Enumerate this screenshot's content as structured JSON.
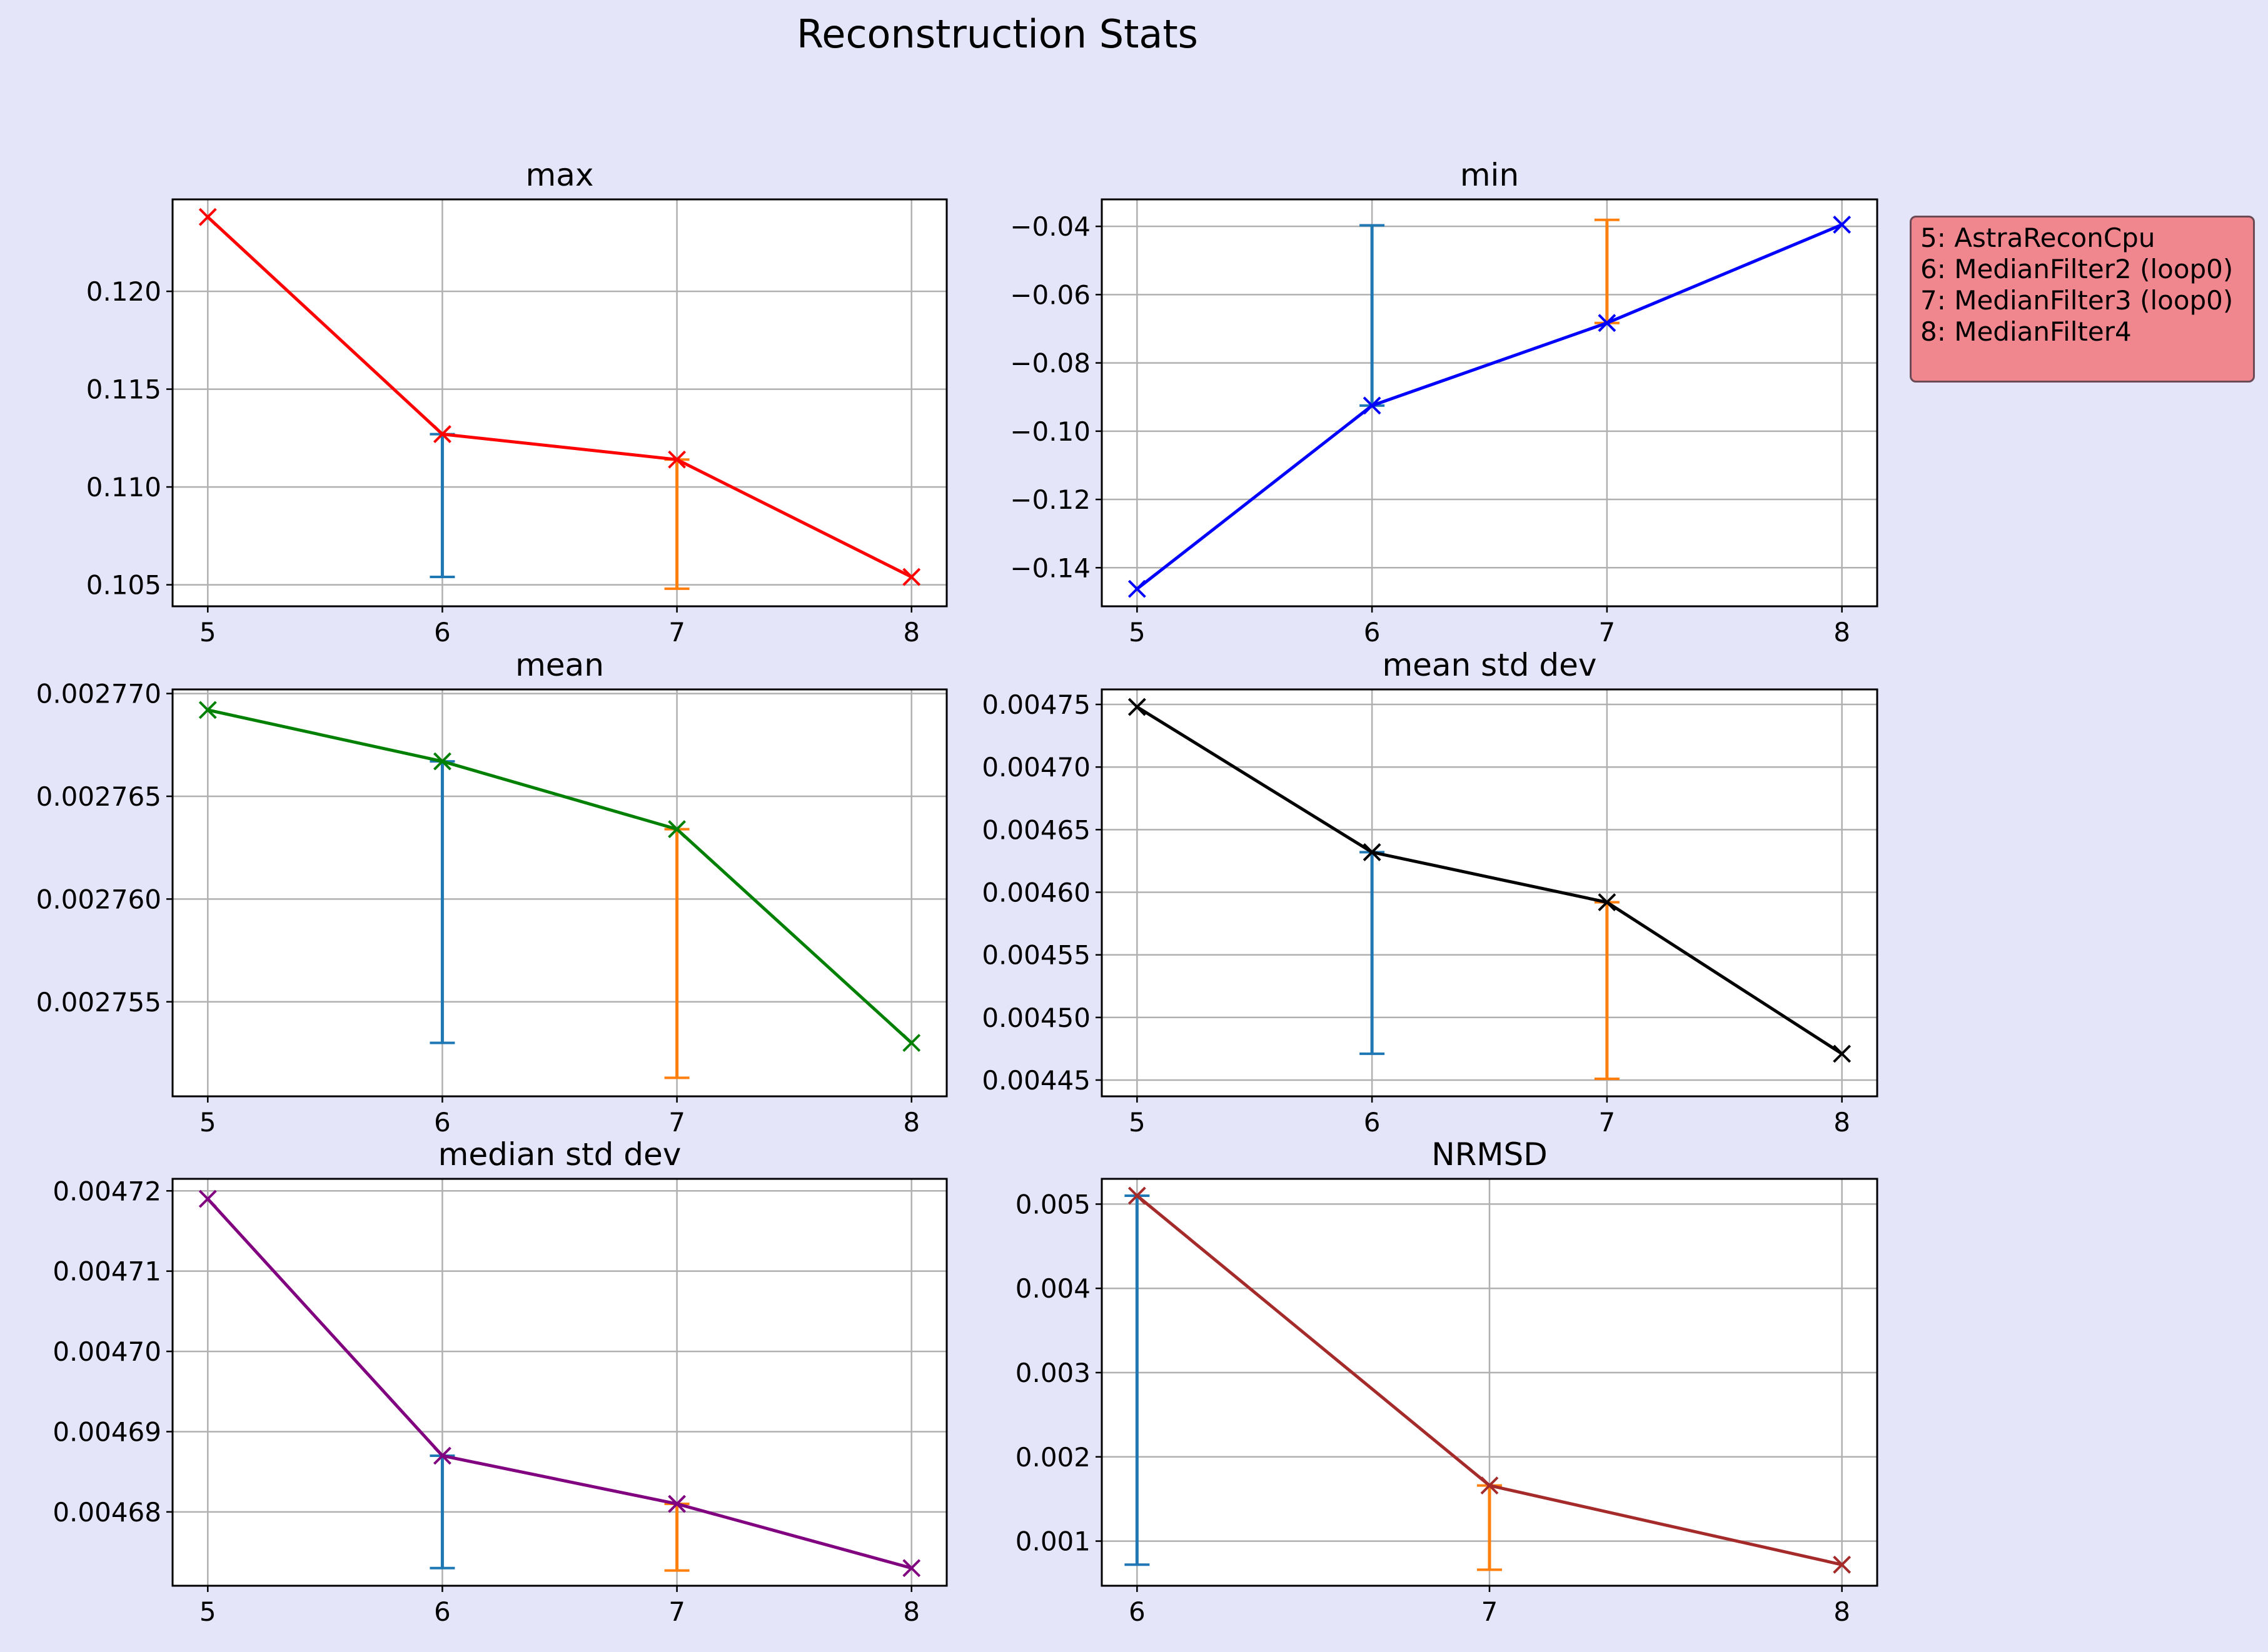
{
  "figure": {
    "title": "Reconstruction Stats",
    "background": "#e4e5f8",
    "legend": {
      "placement": "right of top-right panel",
      "background": "#f0878f",
      "items": [
        "5: AstraReconCpu",
        "6: MedianFilter2 (loop0)",
        "7: MedianFilter3 (loop0)",
        "8: MedianFilter4"
      ]
    }
  },
  "chart_data": [
    {
      "type": "line",
      "title": "max",
      "color": "#ff0000",
      "x": [
        5,
        6,
        7,
        8
      ],
      "y": [
        0.1238,
        0.1127,
        0.1114,
        0.1054
      ],
      "xticks": [
        "5",
        "6",
        "7",
        "8"
      ],
      "yticks": [
        "0.105",
        "0.110",
        "0.115",
        "0.120"
      ],
      "ytick_values": [
        0.105,
        0.11,
        0.115,
        0.12
      ],
      "xlim": [
        4.85,
        8.15
      ],
      "ylim": [
        0.1039,
        0.1247
      ],
      "grid": true,
      "error_bars": [
        {
          "x": 6,
          "low": 0.1054,
          "high": 0.1127,
          "color": "#1f77b4"
        },
        {
          "x": 7,
          "low": 0.1048,
          "high": 0.1114,
          "color": "#ff7f0e"
        }
      ]
    },
    {
      "type": "line",
      "title": "min",
      "color": "#0000ff",
      "x": [
        5,
        6,
        7,
        8
      ],
      "y": [
        -0.1462,
        -0.0925,
        -0.0683,
        -0.0395
      ],
      "xticks": [
        "5",
        "6",
        "7",
        "8"
      ],
      "yticks": [
        "−0.14",
        "−0.12",
        "−0.10",
        "−0.08",
        "−0.06",
        "−0.04"
      ],
      "ytick_values": [
        -0.14,
        -0.12,
        -0.1,
        -0.08,
        -0.06,
        -0.04
      ],
      "xlim": [
        4.85,
        8.15
      ],
      "ylim": [
        -0.1513,
        -0.0321
      ],
      "grid": true,
      "error_bars": [
        {
          "x": 6,
          "low": -0.0925,
          "high": -0.0397,
          "color": "#1f77b4"
        },
        {
          "x": 7,
          "low": -0.0683,
          "high": -0.0381,
          "color": "#ff7f0e"
        }
      ]
    },
    {
      "type": "line",
      "title": "mean",
      "color": "#008000",
      "x": [
        5,
        6,
        7,
        8
      ],
      "y": [
        0.0027692,
        0.0027667,
        0.0027634,
        0.002753
      ],
      "xticks": [
        "5",
        "6",
        "7",
        "8"
      ],
      "yticks": [
        "0.002755",
        "0.002760",
        "0.002765",
        "0.002770"
      ],
      "ytick_values": [
        0.002755,
        0.00276,
        0.002765,
        0.00277
      ],
      "xlim": [
        4.85,
        8.15
      ],
      "ylim": [
        0.0027504,
        0.0027702
      ],
      "grid": true,
      "error_bars": [
        {
          "x": 6,
          "low": 0.002753,
          "high": 0.0027667,
          "color": "#1f77b4"
        },
        {
          "x": 7,
          "low": 0.0027513,
          "high": 0.0027634,
          "color": "#ff7f0e"
        }
      ]
    },
    {
      "type": "line",
      "title": "mean std dev",
      "color": "#000000",
      "x": [
        5,
        6,
        7,
        8
      ],
      "y": [
        0.004748,
        0.004632,
        0.004592,
        0.004471
      ],
      "xticks": [
        "5",
        "6",
        "7",
        "8"
      ],
      "yticks": [
        "0.00445",
        "0.00450",
        "0.00455",
        "0.00460",
        "0.00465",
        "0.00470",
        "0.00475"
      ],
      "ytick_values": [
        0.00445,
        0.0045,
        0.00455,
        0.0046,
        0.00465,
        0.0047,
        0.00475
      ],
      "xlim": [
        4.85,
        8.15
      ],
      "ylim": [
        0.004437,
        0.004762
      ],
      "grid": true,
      "error_bars": [
        {
          "x": 6,
          "low": 0.004471,
          "high": 0.004632,
          "color": "#1f77b4"
        },
        {
          "x": 7,
          "low": 0.004451,
          "high": 0.004592,
          "color": "#ff7f0e"
        }
      ]
    },
    {
      "type": "line",
      "title": "median std dev",
      "color": "#800080",
      "x": [
        5,
        6,
        7,
        8
      ],
      "y": [
        0.004719,
        0.004687,
        0.004681,
        0.004673
      ],
      "xticks": [
        "5",
        "6",
        "7",
        "8"
      ],
      "yticks": [
        "0.00468",
        "0.00469",
        "0.00470",
        "0.00471",
        "0.00472"
      ],
      "ytick_values": [
        0.00468,
        0.00469,
        0.0047,
        0.00471,
        0.00472
      ],
      "xlim": [
        4.85,
        8.15
      ],
      "ylim": [
        0.0046708,
        0.0047215
      ],
      "grid": true,
      "error_bars": [
        {
          "x": 6,
          "low": 0.004673,
          "high": 0.004687,
          "color": "#1f77b4"
        },
        {
          "x": 7,
          "low": 0.0046727,
          "high": 0.004681,
          "color": "#ff7f0e"
        }
      ]
    },
    {
      "type": "line",
      "title": "NRMSD",
      "color": "#a52a2a",
      "x": [
        6,
        7,
        8
      ],
      "y": [
        0.0051,
        0.00166,
        0.00072
      ],
      "xticks": [
        "6",
        "7",
        "8"
      ],
      "yticks": [
        "0.001",
        "0.002",
        "0.003",
        "0.004",
        "0.005"
      ],
      "ytick_values": [
        0.001,
        0.002,
        0.003,
        0.004,
        0.005
      ],
      "xlim": [
        5.9,
        8.1
      ],
      "ylim": [
        0.00047,
        0.0053
      ],
      "grid": true,
      "error_bars": [
        {
          "x": 6,
          "low": 0.00072,
          "high": 0.0051,
          "color": "#1f77b4"
        },
        {
          "x": 7,
          "low": 0.00066,
          "high": 0.00166,
          "color": "#ff7f0e"
        }
      ]
    }
  ]
}
